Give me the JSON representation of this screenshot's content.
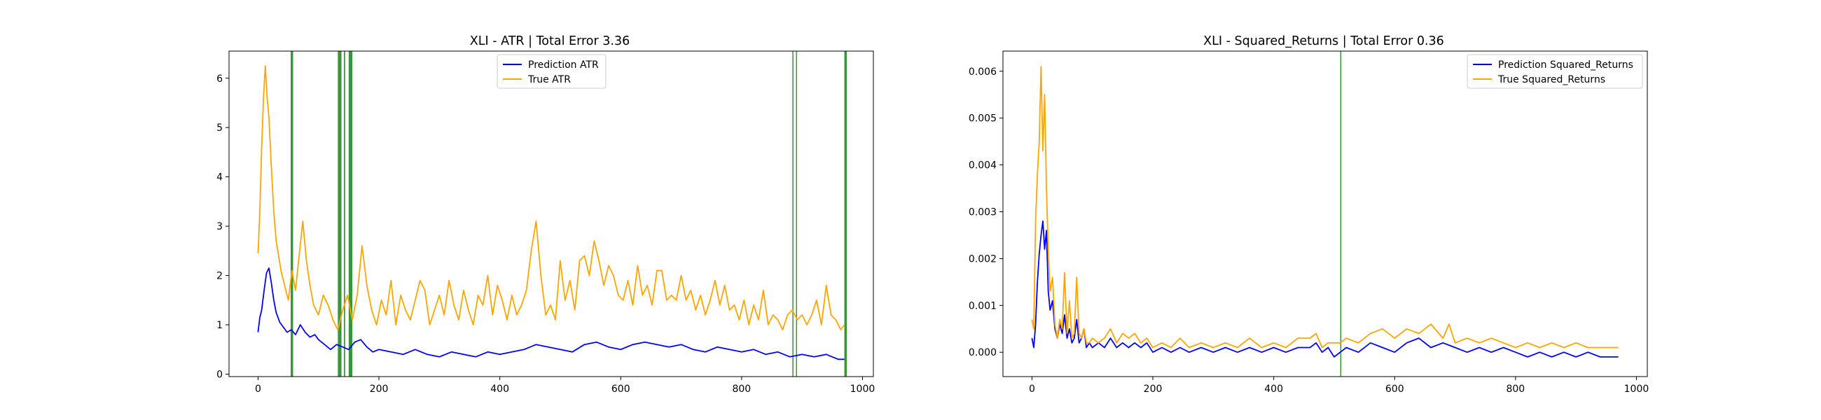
{
  "chart_data": [
    {
      "type": "line",
      "title": "XLI - ATR | Total Error 3.36",
      "xlabel": "",
      "ylabel": "",
      "xlim": [
        -48,
        1018
      ],
      "ylim": [
        -0.05,
        6.55
      ],
      "xticks": [
        0,
        200,
        400,
        600,
        800,
        1000
      ],
      "xtick_labels": [
        "0",
        "200",
        "400",
        "600",
        "800",
        "1000"
      ],
      "yticks": [
        0,
        1,
        2,
        3,
        4,
        5,
        6
      ],
      "ytick_labels": [
        "0",
        "1",
        "2",
        "3",
        "4",
        "5",
        "6"
      ],
      "grid": false,
      "legend_position": "upper center",
      "highlight_color": "#228b22",
      "highlights": [
        {
          "x": [
            54,
            58
          ]
        },
        {
          "x": [
            132,
            138
          ]
        },
        {
          "x": [
            142,
            144
          ]
        },
        {
          "x": [
            150,
            156
          ]
        },
        {
          "x": [
            884,
            885
          ]
        },
        {
          "x": [
            890,
            891
          ]
        },
        {
          "x": [
            970,
            974
          ]
        }
      ],
      "series": [
        {
          "name": "Prediction ATR",
          "color": "#0000ff",
          "x": [
            0,
            3,
            6,
            10,
            14,
            18,
            22,
            26,
            30,
            36,
            42,
            48,
            55,
            62,
            70,
            78,
            86,
            94,
            100,
            110,
            120,
            130,
            140,
            150,
            160,
            170,
            180,
            190,
            200,
            220,
            240,
            260,
            280,
            300,
            320,
            340,
            360,
            380,
            400,
            420,
            440,
            460,
            480,
            500,
            520,
            540,
            560,
            580,
            600,
            620,
            640,
            660,
            680,
            700,
            720,
            740,
            760,
            780,
            800,
            820,
            840,
            860,
            880,
            900,
            920,
            940,
            960,
            970
          ],
          "y": [
            0.85,
            1.15,
            1.3,
            1.7,
            2.05,
            2.15,
            1.85,
            1.5,
            1.25,
            1.05,
            0.95,
            0.85,
            0.9,
            0.8,
            1.0,
            0.85,
            0.75,
            0.8,
            0.7,
            0.6,
            0.5,
            0.6,
            0.55,
            0.5,
            0.65,
            0.7,
            0.55,
            0.45,
            0.5,
            0.45,
            0.4,
            0.5,
            0.4,
            0.35,
            0.45,
            0.4,
            0.35,
            0.45,
            0.4,
            0.45,
            0.5,
            0.6,
            0.55,
            0.5,
            0.45,
            0.6,
            0.65,
            0.55,
            0.5,
            0.6,
            0.65,
            0.6,
            0.55,
            0.6,
            0.5,
            0.45,
            0.55,
            0.5,
            0.45,
            0.5,
            0.4,
            0.45,
            0.35,
            0.4,
            0.35,
            0.4,
            0.3,
            0.3
          ]
        },
        {
          "name": "True ATR",
          "color": "#ffa500",
          "x": [
            0,
            3,
            6,
            9,
            12,
            15,
            18,
            22,
            26,
            30,
            34,
            38,
            44,
            50,
            56,
            62,
            68,
            74,
            80,
            86,
            92,
            100,
            108,
            116,
            124,
            132,
            140,
            148,
            156,
            164,
            172,
            180,
            188,
            196,
            204,
            212,
            220,
            228,
            236,
            244,
            252,
            260,
            268,
            276,
            284,
            292,
            300,
            308,
            316,
            324,
            332,
            340,
            348,
            356,
            364,
            372,
            380,
            388,
            396,
            404,
            412,
            420,
            428,
            436,
            444,
            452,
            460,
            468,
            476,
            484,
            492,
            500,
            508,
            516,
            524,
            532,
            540,
            548,
            556,
            564,
            572,
            580,
            588,
            596,
            604,
            612,
            620,
            628,
            636,
            644,
            652,
            660,
            668,
            676,
            684,
            692,
            700,
            708,
            716,
            724,
            732,
            740,
            748,
            756,
            764,
            772,
            780,
            788,
            796,
            804,
            812,
            820,
            828,
            836,
            844,
            852,
            860,
            868,
            876,
            884,
            892,
            900,
            908,
            916,
            924,
            932,
            940,
            948,
            956,
            964,
            970
          ],
          "y": [
            2.45,
            3.3,
            4.6,
            5.6,
            6.25,
            5.6,
            5.2,
            4.2,
            3.3,
            2.7,
            2.4,
            2.1,
            1.8,
            1.5,
            2.1,
            1.7,
            2.4,
            3.1,
            2.3,
            1.8,
            1.4,
            1.2,
            1.6,
            1.4,
            1.1,
            0.9,
            1.3,
            1.6,
            1.1,
            1.6,
            2.6,
            1.8,
            1.3,
            1.0,
            1.5,
            1.2,
            1.9,
            1.0,
            1.6,
            1.3,
            1.1,
            1.5,
            1.9,
            1.7,
            1.0,
            1.3,
            1.6,
            1.2,
            1.9,
            1.4,
            1.1,
            1.7,
            1.3,
            1.0,
            1.6,
            1.4,
            2.0,
            1.2,
            1.8,
            1.5,
            1.1,
            1.6,
            1.2,
            1.4,
            1.7,
            2.5,
            3.1,
            2.0,
            1.2,
            1.4,
            1.1,
            2.3,
            1.5,
            1.9,
            1.3,
            2.3,
            2.4,
            2.0,
            2.7,
            2.3,
            1.8,
            2.2,
            2.0,
            1.6,
            1.5,
            1.9,
            1.4,
            2.2,
            1.6,
            1.8,
            1.4,
            2.1,
            2.1,
            1.5,
            1.6,
            1.5,
            2.0,
            1.5,
            1.7,
            1.3,
            1.6,
            1.2,
            1.5,
            1.9,
            1.4,
            1.8,
            1.3,
            1.4,
            1.1,
            1.5,
            1.0,
            1.4,
            1.1,
            1.7,
            1.0,
            1.2,
            1.1,
            0.9,
            1.2,
            1.3,
            1.1,
            1.2,
            1.0,
            1.2,
            1.5,
            1.0,
            1.8,
            1.2,
            1.1,
            0.9,
            1.0
          ]
        }
      ]
    },
    {
      "type": "line",
      "title": "XLI - Squared_Returns | Total Error 0.36",
      "xlabel": "",
      "ylabel": "",
      "xlim": [
        -48,
        1018
      ],
      "ylim": [
        -0.00052,
        0.00643
      ],
      "xticks": [
        0,
        200,
        400,
        600,
        800,
        1000
      ],
      "xtick_labels": [
        "0",
        "200",
        "400",
        "600",
        "800",
        "1000"
      ],
      "yticks": [
        0,
        0.001,
        0.002,
        0.003,
        0.004,
        0.005,
        0.006
      ],
      "ytick_labels": [
        "0.000",
        "0.001",
        "0.002",
        "0.003",
        "0.004",
        "0.005",
        "0.006"
      ],
      "grid": false,
      "legend_position": "upper right",
      "highlight_color": "#228b22",
      "highlights": [
        {
          "x": [
            510,
            511
          ]
        }
      ],
      "series": [
        {
          "name": "Prediction Squared_Returns",
          "color": "#0000ff",
          "x": [
            0,
            3,
            6,
            9,
            12,
            15,
            18,
            21,
            24,
            27,
            30,
            34,
            38,
            42,
            46,
            50,
            54,
            58,
            62,
            66,
            70,
            74,
            78,
            82,
            86,
            90,
            95,
            100,
            110,
            120,
            130,
            140,
            150,
            160,
            170,
            180,
            190,
            200,
            215,
            230,
            245,
            260,
            280,
            300,
            320,
            340,
            360,
            380,
            400,
            420,
            440,
            460,
            470,
            480,
            490,
            500,
            510,
            520,
            540,
            560,
            580,
            600,
            620,
            640,
            660,
            680,
            700,
            720,
            740,
            760,
            780,
            800,
            820,
            840,
            860,
            880,
            900,
            920,
            940,
            960,
            970
          ],
          "y": [
            0.0003,
            0.0001,
            0.0006,
            0.0015,
            0.0021,
            0.0025,
            0.0028,
            0.0022,
            0.0026,
            0.0013,
            0.0009,
            0.0011,
            0.0005,
            0.0003,
            0.0006,
            0.0004,
            0.0008,
            0.0003,
            0.0005,
            0.0002,
            0.0003,
            0.0007,
            0.0002,
            0.0003,
            0.0005,
            0.0001,
            0.0002,
            0.0001,
            0.0002,
            0.0001,
            0.0003,
            0.0001,
            0.0002,
            0.0001,
            0.0002,
            0.0001,
            0.0002,
            0.0,
            0.0001,
            0.0,
            0.0001,
            0.0,
            0.0001,
            0.0,
            0.0001,
            0.0,
            0.0001,
            0.0,
            0.0001,
            0.0,
            0.0001,
            0.0001,
            0.0002,
            0.0,
            0.0001,
            -0.0001,
            0.0,
            0.0001,
            0.0,
            0.0002,
            0.0001,
            0.0,
            0.0002,
            0.0003,
            0.0001,
            0.0002,
            0.0001,
            0.0,
            0.0001,
            0.0,
            0.0001,
            0.0,
            -0.0001,
            0.0,
            -0.0001,
            0.0,
            -0.0001,
            0.0,
            -0.0001,
            -0.0001,
            -0.0001
          ]
        },
        {
          "name": "True Squared_Returns",
          "color": "#ffa500",
          "x": [
            0,
            3,
            6,
            9,
            12,
            15,
            18,
            21,
            24,
            27,
            30,
            34,
            38,
            42,
            46,
            50,
            54,
            58,
            62,
            66,
            70,
            74,
            78,
            82,
            86,
            90,
            95,
            100,
            110,
            120,
            130,
            140,
            150,
            160,
            170,
            180,
            190,
            200,
            215,
            230,
            245,
            260,
            280,
            300,
            320,
            340,
            360,
            380,
            400,
            420,
            440,
            460,
            470,
            480,
            490,
            500,
            510,
            520,
            540,
            560,
            580,
            600,
            620,
            640,
            660,
            680,
            690,
            700,
            720,
            740,
            760,
            780,
            800,
            820,
            840,
            860,
            880,
            900,
            920,
            940,
            960,
            970
          ],
          "y": [
            0.0007,
            0.0005,
            0.0028,
            0.0038,
            0.0045,
            0.0061,
            0.0043,
            0.0055,
            0.0035,
            0.0022,
            0.0013,
            0.0016,
            0.0006,
            0.0003,
            0.0007,
            0.0005,
            0.0017,
            0.0004,
            0.0011,
            0.0003,
            0.0004,
            0.0016,
            0.0004,
            0.0003,
            0.0005,
            0.0002,
            0.0002,
            0.0003,
            0.0002,
            0.0003,
            0.0005,
            0.0002,
            0.0004,
            0.0003,
            0.0004,
            0.0002,
            0.0003,
            0.0001,
            0.0002,
            0.0001,
            0.0003,
            0.0001,
            0.0002,
            0.0001,
            0.0002,
            0.0001,
            0.0003,
            0.0001,
            0.0002,
            0.0001,
            0.0003,
            0.0003,
            0.0004,
            0.0001,
            0.0002,
            0.0002,
            0.0002,
            0.0003,
            0.0002,
            0.0004,
            0.0005,
            0.0003,
            0.0005,
            0.0004,
            0.0006,
            0.0003,
            0.0006,
            0.0002,
            0.0003,
            0.0002,
            0.0003,
            0.0002,
            0.0001,
            0.0002,
            0.0001,
            0.0002,
            0.0001,
            0.0002,
            0.0001,
            0.0001,
            0.0001,
            0.0001
          ]
        }
      ]
    }
  ]
}
